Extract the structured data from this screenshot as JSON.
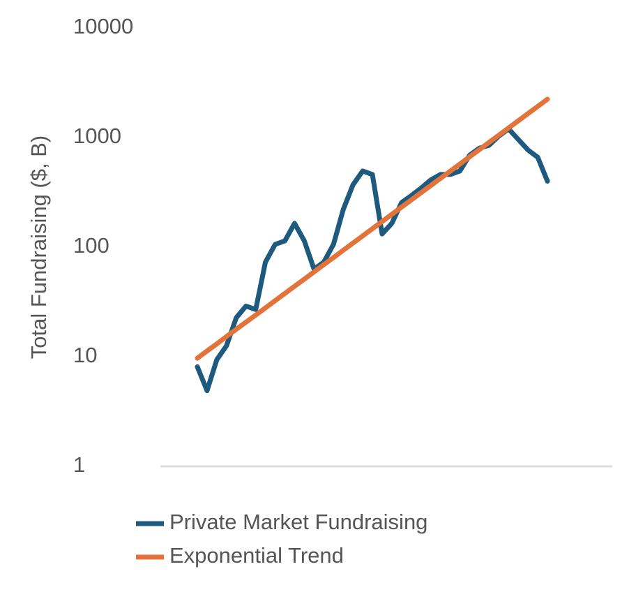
{
  "chart_data": {
    "type": "line",
    "y_label": "Total Fundraising ($, B)",
    "categories": [
      null,
      null,
      null,
      null,
      null,
      null,
      null,
      null,
      null,
      null,
      null,
      null,
      null,
      null,
      null,
      null,
      null,
      null,
      null,
      null,
      null,
      null,
      null,
      null,
      null,
      null,
      null,
      null,
      null,
      null,
      null,
      null,
      null,
      null,
      null,
      null,
      null
    ],
    "series": [
      {
        "name": "Private Market Fundraising",
        "color": "#1d5a7e",
        "values": [
          8.1,
          4.9,
          9.4,
          12.6,
          22.7,
          29,
          27,
          73,
          106,
          114,
          165,
          114,
          63,
          73,
          106,
          220,
          370,
          495,
          460,
          132,
          165,
          255,
          295,
          345,
          410,
          460,
          460,
          495,
          690,
          800,
          850,
          1030,
          1200,
          960,
          770,
          660,
          400
        ]
      },
      {
        "name": "Exponential Trend",
        "color": "#e2733a",
        "values": [
          9.7,
          11.3,
          13.1,
          15.3,
          17.8,
          20.7,
          24.0,
          27.9,
          32.5,
          37.8,
          44.0,
          51.1,
          59.5,
          69.2,
          80.4,
          93.6,
          108.8,
          126.6,
          147.2,
          171.3,
          199.2,
          231.7,
          269.5,
          313.5,
          364.6,
          424.1,
          493.3,
          573.8,
          667.5,
          776.4,
          903.1,
          1050,
          1222,
          1421,
          1653,
          1923,
          2237
        ]
      }
    ],
    "log_scale": true,
    "ylim": [
      1,
      10000
    ],
    "yticks": [
      1,
      10,
      100,
      1000,
      10000
    ],
    "legend": "bottom"
  }
}
